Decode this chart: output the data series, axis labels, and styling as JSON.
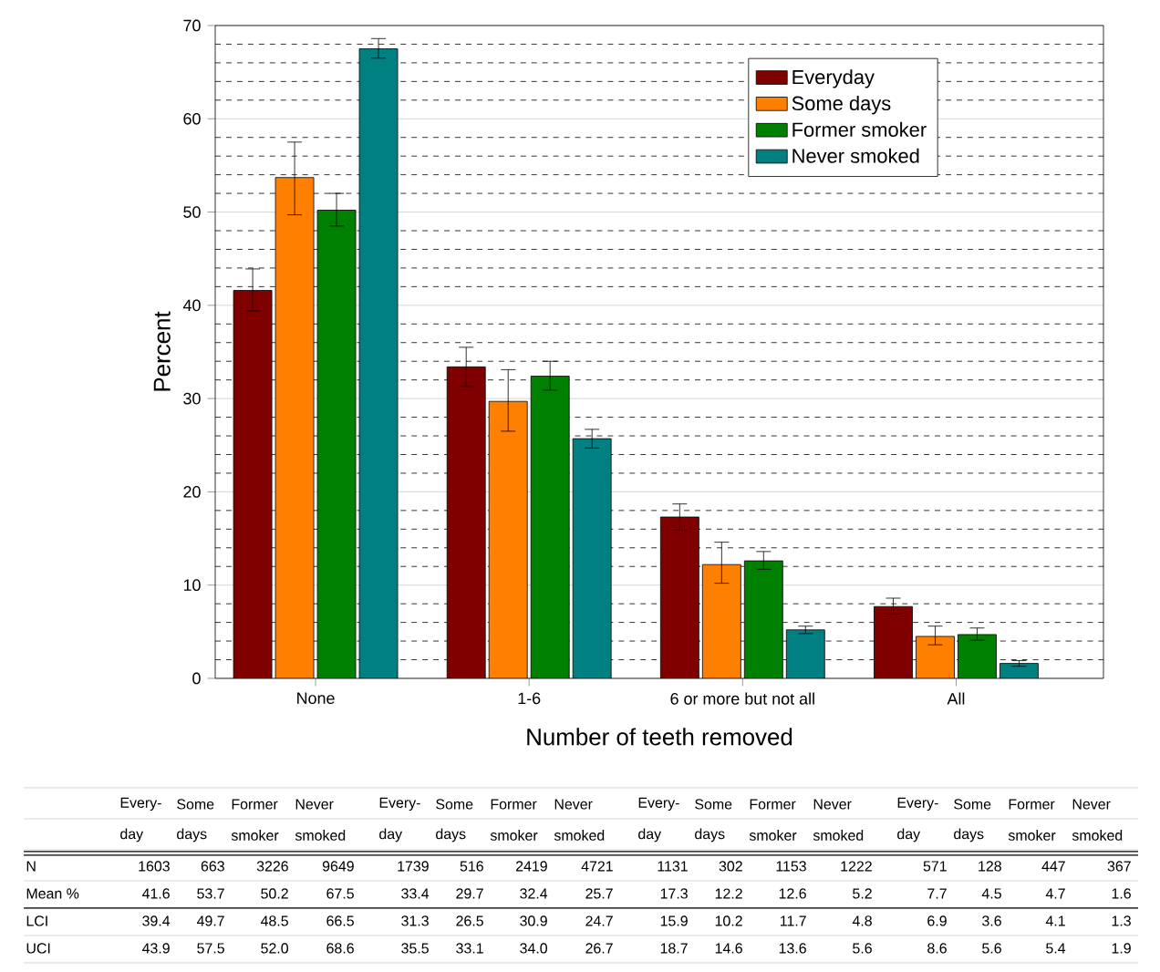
{
  "chart_data": {
    "type": "bar",
    "xlabel": "Number of teeth removed",
    "ylabel": "Percent",
    "categories": [
      "None",
      "1-6",
      "6 or more but not all",
      "All"
    ],
    "series": [
      {
        "name": "Everyday",
        "color": "#800000",
        "values": [
          41.6,
          33.4,
          17.3,
          7.7
        ],
        "errors": [
          [
            39.4,
            43.9
          ],
          [
            31.3,
            35.5
          ],
          [
            15.9,
            18.7
          ],
          [
            6.9,
            8.6
          ]
        ]
      },
      {
        "name": "Some days",
        "color": "#ff8000",
        "values": [
          53.7,
          29.7,
          12.2,
          4.5
        ],
        "errors": [
          [
            49.7,
            57.5
          ],
          [
            26.5,
            33.1
          ],
          [
            10.2,
            14.6
          ],
          [
            3.6,
            5.6
          ]
        ]
      },
      {
        "name": "Former smoker",
        "color": "#008000",
        "values": [
          50.2,
          32.4,
          12.6,
          4.7
        ],
        "errors": [
          [
            48.5,
            52.0
          ],
          [
            30.9,
            34.0
          ],
          [
            11.7,
            13.6
          ],
          [
            4.1,
            5.4
          ]
        ]
      },
      {
        "name": "Never smoked",
        "color": "#008080",
        "values": [
          67.5,
          25.7,
          5.2,
          1.6
        ],
        "errors": [
          [
            66.5,
            68.6
          ],
          [
            24.7,
            26.7
          ],
          [
            4.8,
            5.6
          ],
          [
            1.3,
            1.9
          ]
        ]
      }
    ],
    "ylim": [
      0,
      70
    ],
    "yticks": [
      0,
      10,
      20,
      30,
      40,
      50,
      60,
      70
    ],
    "grid": "y",
    "legend": "top right",
    "annotations": [
      "Every-",
      "day",
      "Some",
      "days",
      "Former",
      "smoker",
      "Never",
      "smoked",
      "N",
      "Mean %",
      "LCI",
      "UCI",
      "1603",
      "663",
      "3226",
      "9649",
      "1739",
      "516",
      "2419",
      "4721",
      "1131",
      "302",
      "1153",
      "1222",
      "571",
      "128",
      "447",
      "367",
      "41.6",
      "53.7",
      "50.2",
      "67.5",
      "33.4",
      "29.7",
      "32.4",
      "25.7",
      "17.3",
      "12.2",
      "12.6",
      "5.2",
      "7.7",
      "4.5",
      "4.7",
      "1.6",
      "39.4",
      "49.7",
      "48.5",
      "66.5",
      "31.3",
      "26.5",
      "30.9",
      "24.7",
      "15.9",
      "10.2",
      "11.7",
      "4.8",
      "6.9",
      "3.6",
      "4.1",
      "1.3",
      "43.9",
      "57.5",
      "52.0",
      "68.6",
      "35.5",
      "33.1",
      "34.0",
      "26.7",
      "18.7",
      "14.6",
      "13.6",
      "5.6",
      "8.6",
      "5.6",
      "5.4",
      "1.9"
    ]
  }
}
